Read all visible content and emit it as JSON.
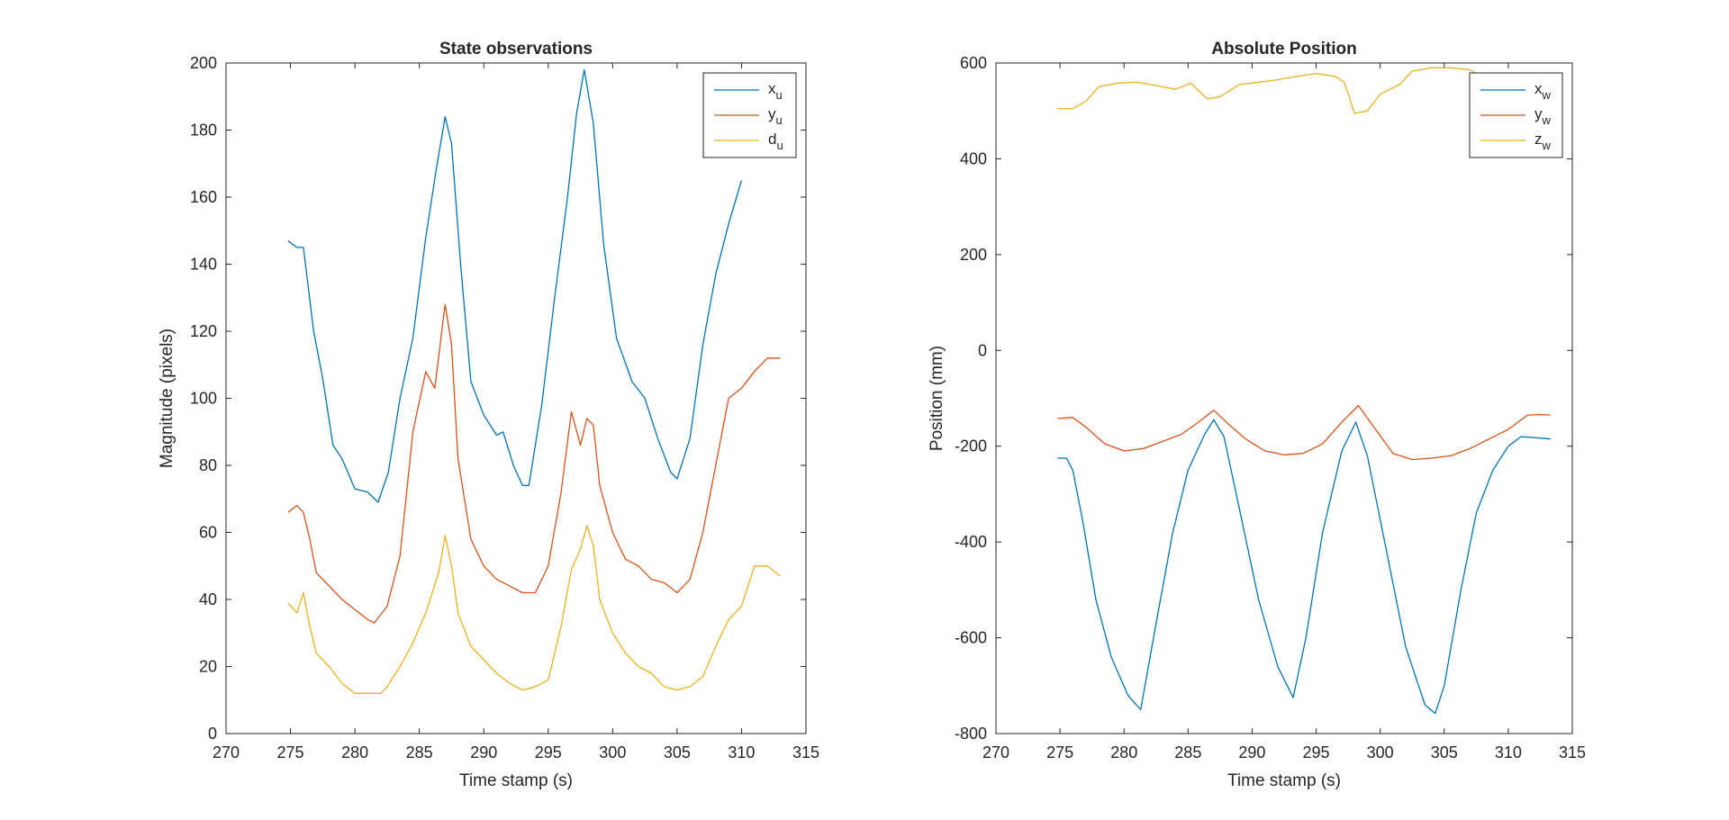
{
  "chart_data": [
    {
      "type": "line",
      "title": "State observations",
      "xlabel": "Time stamp (s)",
      "ylabel": "Magnitude (pixels)",
      "xlim": [
        270,
        315
      ],
      "ylim": [
        0,
        200
      ],
      "xticks": [
        270,
        275,
        280,
        285,
        290,
        295,
        300,
        305,
        310,
        315
      ],
      "yticks": [
        0,
        20,
        40,
        60,
        80,
        100,
        120,
        140,
        160,
        180,
        200
      ],
      "legend_position": "top-right",
      "series": [
        {
          "name": "x",
          "sub": "u",
          "color": "#0072BD",
          "x": [
            274.8,
            275.5,
            276,
            276.8,
            277.5,
            278.3,
            279,
            280,
            281,
            281.8,
            282.6,
            283.5,
            284.5,
            285.5,
            286.3,
            287,
            287.5,
            288.2,
            289,
            290,
            291,
            291.5,
            292.3,
            293,
            293.5,
            294.5,
            295.5,
            296.5,
            297.2,
            297.8,
            298.5,
            299.3,
            300.3,
            301.5,
            302.5,
            303.5,
            304.5,
            305,
            306,
            307,
            308,
            309,
            310
          ],
          "y": [
            147,
            145,
            145,
            120,
            106,
            86,
            82,
            73,
            72,
            69,
            78,
            100,
            118,
            148,
            168,
            184,
            176,
            140,
            105,
            95,
            89,
            90,
            80,
            74,
            74,
            98,
            130,
            160,
            185,
            198,
            182,
            146,
            118,
            105,
            100,
            88,
            78,
            76,
            88,
            116,
            137,
            152,
            165
          ]
        },
        {
          "name": "y",
          "sub": "u",
          "color": "#D95319",
          "x": [
            274.8,
            275.5,
            276,
            276.5,
            277,
            278,
            279,
            280,
            281,
            281.5,
            282.5,
            283.5,
            284.5,
            285.5,
            286.2,
            287,
            287.5,
            288,
            289,
            290,
            291,
            292,
            293,
            294,
            295,
            296,
            296.8,
            297.5,
            298,
            298.5,
            299,
            300,
            301,
            302,
            303,
            304,
            305,
            306,
            307,
            308,
            309,
            310,
            311,
            312,
            313
          ],
          "y": [
            66,
            68,
            66,
            58,
            48,
            44,
            40,
            37,
            34,
            33,
            38,
            53,
            90,
            108,
            103,
            128,
            116,
            82,
            58,
            50,
            46,
            44,
            42,
            42,
            50,
            72,
            96,
            86,
            94,
            92,
            74,
            60,
            52,
            50,
            46,
            45,
            42,
            46,
            60,
            80,
            100,
            103,
            108,
            112,
            112
          ]
        },
        {
          "name": "d",
          "sub": "u",
          "color": "#EDB120",
          "x": [
            274.8,
            275.5,
            276,
            276.5,
            277,
            277.5,
            278,
            279,
            280,
            281,
            282,
            282.5,
            283.5,
            284.5,
            285.5,
            286.5,
            287,
            287.5,
            288,
            289,
            290,
            291,
            292,
            293,
            294,
            295,
            296,
            296.8,
            297.5,
            298,
            298.5,
            299,
            300,
            301,
            302,
            303,
            304,
            305,
            306,
            307,
            308,
            309,
            310,
            311,
            312,
            313
          ],
          "y": [
            39,
            36,
            42,
            32,
            24,
            22,
            20,
            15,
            12,
            12,
            12,
            14,
            20,
            27,
            36,
            48,
            59,
            50,
            36,
            26,
            22,
            18,
            15,
            13,
            14,
            16,
            32,
            49,
            55,
            62,
            56,
            40,
            30,
            24,
            20,
            18,
            14,
            13,
            14,
            17,
            26,
            34,
            38,
            50,
            50,
            47
          ]
        }
      ]
    },
    {
      "type": "line",
      "title": "Absolute Position",
      "xlabel": "Time stamp (s)",
      "ylabel": "Position (mm)",
      "xlim": [
        270,
        315
      ],
      "ylim": [
        -800,
        600
      ],
      "xticks": [
        270,
        275,
        280,
        285,
        290,
        295,
        300,
        305,
        310,
        315
      ],
      "yticks": [
        -800,
        -600,
        -400,
        -200,
        0,
        200,
        400,
        600
      ],
      "legend_position": "top-right",
      "series": [
        {
          "name": "x",
          "sub": "w",
          "color": "#0072BD",
          "x": [
            274.8,
            275.5,
            276,
            276.8,
            277.8,
            279,
            280.3,
            281.3,
            282.5,
            283.8,
            285,
            286.3,
            287,
            287.8,
            289,
            290.5,
            292,
            293.2,
            294.2,
            295.5,
            297,
            298.1,
            299,
            300.5,
            302,
            303.5,
            304.3,
            305,
            306.3,
            307.5,
            308.8,
            310,
            311,
            312,
            313.3
          ],
          "y": [
            -225,
            -225,
            -250,
            -360,
            -520,
            -640,
            -720,
            -750,
            -570,
            -380,
            -250,
            -175,
            -145,
            -180,
            -330,
            -520,
            -660,
            -725,
            -600,
            -380,
            -210,
            -150,
            -220,
            -420,
            -620,
            -740,
            -758,
            -700,
            -500,
            -340,
            -250,
            -200,
            -180,
            -182,
            -185
          ]
        },
        {
          "name": "y",
          "sub": "w",
          "color": "#D95319",
          "x": [
            274.8,
            276,
            277,
            278.5,
            280,
            281.5,
            283,
            284.5,
            285.8,
            287,
            288.2,
            289.5,
            291,
            292.5,
            294,
            295.5,
            297,
            298.3,
            299.5,
            301,
            302.5,
            304,
            305.5,
            307,
            308.5,
            310,
            311.5,
            312.5,
            313.3
          ],
          "y": [
            -142,
            -140,
            -160,
            -195,
            -210,
            -205,
            -190,
            -175,
            -150,
            -125,
            -155,
            -185,
            -210,
            -218,
            -215,
            -195,
            -150,
            -115,
            -160,
            -215,
            -228,
            -225,
            -220,
            -205,
            -185,
            -165,
            -135,
            -134,
            -135
          ]
        },
        {
          "name": "z",
          "sub": "w",
          "color": "#EDB120",
          "x": [
            274.8,
            276,
            277,
            278,
            279.5,
            281,
            282.5,
            284,
            285.2,
            286.5,
            287.5,
            289,
            290.5,
            292,
            293.5,
            295,
            296.5,
            297.2,
            298,
            299,
            300,
            301.5,
            302.5,
            304,
            305.5,
            307,
            308,
            309
          ],
          "y": [
            505,
            505,
            520,
            550,
            558,
            560,
            553,
            545,
            558,
            525,
            530,
            555,
            560,
            565,
            572,
            578,
            572,
            560,
            495,
            500,
            535,
            555,
            583,
            590,
            590,
            586,
            570,
            563
          ]
        }
      ]
    }
  ]
}
